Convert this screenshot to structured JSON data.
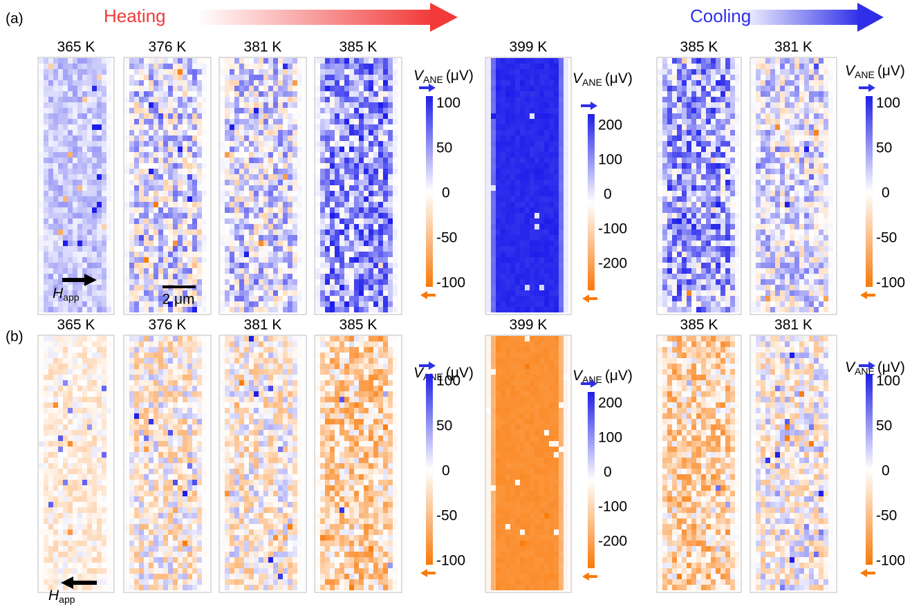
{
  "header": {
    "panel_a": "(a)",
    "panel_b": "(b)",
    "heating": "Heating",
    "cooling": "Cooling"
  },
  "rows": [
    {
      "maps": [
        "365 K",
        "376 K",
        "381 K",
        "385 K",
        "399 K",
        "385 K",
        "381 K"
      ],
      "colorbars": [
        {
          "symbol": "V",
          "subscript": "ANE",
          "unit": "(μV)",
          "ticks": [
            "100",
            "50",
            "0",
            "-50",
            "-100"
          ]
        },
        {
          "symbol": "V",
          "subscript": "ANE",
          "unit": "(μV)",
          "ticks": [
            "200",
            "100",
            "0",
            "-100",
            "-200"
          ]
        },
        {
          "symbol": "V",
          "subscript": "ANE",
          "unit": "(μV)",
          "ticks": [
            "100",
            "50",
            "0",
            "-50",
            "-100"
          ]
        }
      ]
    },
    {
      "maps": [
        "365 K",
        "376 K",
        "381 K",
        "385 K",
        "399 K",
        "385 K",
        "381 K"
      ],
      "colorbars": [
        {
          "symbol": "V",
          "subscript": "ANE",
          "unit": "(μV)",
          "ticks": [
            "100",
            "50",
            "0",
            "-50",
            "-100"
          ]
        },
        {
          "symbol": "V",
          "subscript": "ANE",
          "unit": "(μV)",
          "ticks": [
            "200",
            "100",
            "0",
            "-100",
            "-200"
          ]
        },
        {
          "symbol": "V",
          "subscript": "ANE",
          "unit": "(μV)",
          "ticks": [
            "100",
            "50",
            "0",
            "-50",
            "-100"
          ]
        }
      ]
    }
  ],
  "field": {
    "symbol": "H",
    "subscript": "app"
  },
  "scale_bar": "2 μm"
}
